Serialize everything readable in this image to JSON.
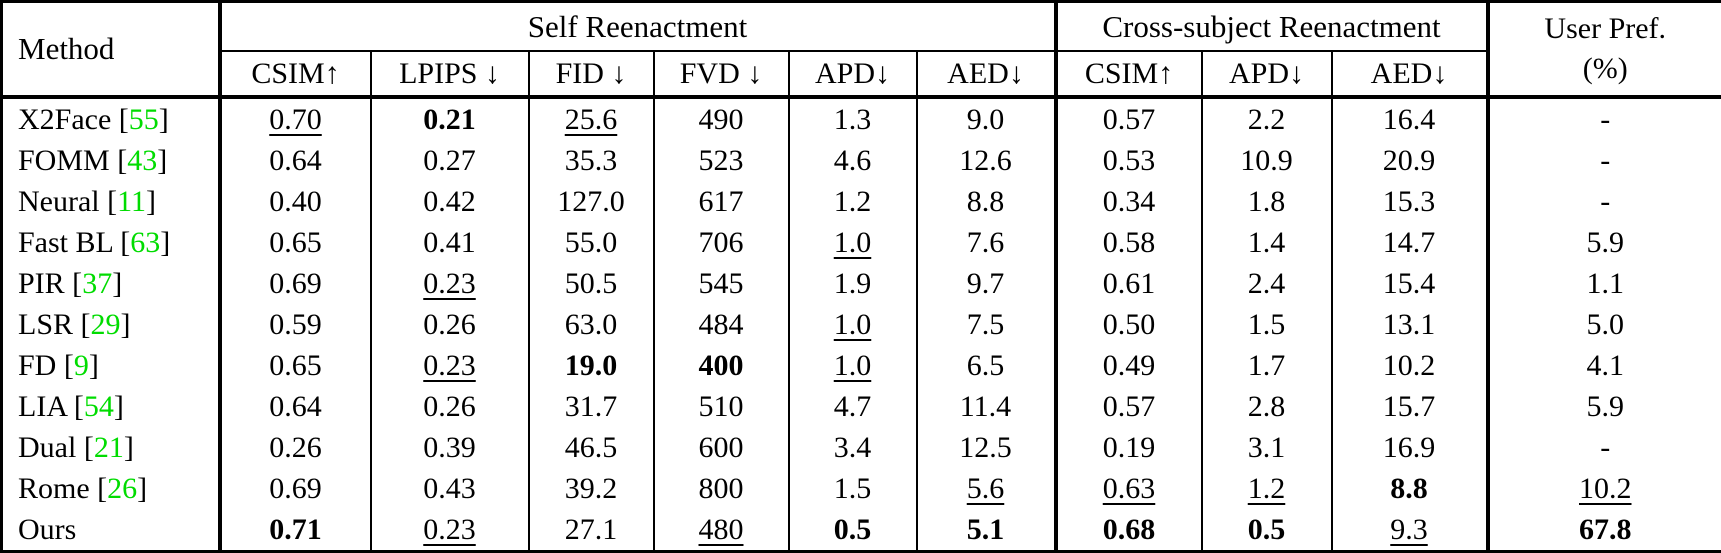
{
  "colors": {
    "citation": "#00dc00"
  },
  "table": {
    "header": {
      "method": "Method",
      "group_self": "Self Reenactment",
      "group_cross": "Cross-subject Reenactment",
      "user_pref_line1": "User Pref.",
      "user_pref_line2": "(%)",
      "sub_self": [
        "CSIM↑",
        "LPIPS ↓",
        "FID ↓",
        "FVD ↓",
        "APD↓",
        "AED↓"
      ],
      "sub_cross": [
        "CSIM↑",
        "APD↓",
        "AED↓"
      ]
    },
    "rows": [
      {
        "method": "X2Face",
        "cite": "55",
        "cells": [
          {
            "v": "0.70",
            "s": "u"
          },
          {
            "v": "0.21",
            "s": "b"
          },
          {
            "v": "25.6",
            "s": "u"
          },
          {
            "v": "490"
          },
          {
            "v": "1.3"
          },
          {
            "v": "9.0"
          },
          {
            "v": "0.57"
          },
          {
            "v": "2.2"
          },
          {
            "v": "16.4"
          },
          {
            "v": "-"
          }
        ]
      },
      {
        "method": "FOMM",
        "cite": "43",
        "cells": [
          {
            "v": "0.64"
          },
          {
            "v": "0.27"
          },
          {
            "v": "35.3"
          },
          {
            "v": "523"
          },
          {
            "v": "4.6"
          },
          {
            "v": "12.6"
          },
          {
            "v": "0.53"
          },
          {
            "v": "10.9"
          },
          {
            "v": "20.9"
          },
          {
            "v": "-"
          }
        ]
      },
      {
        "method": "Neural",
        "cite": "11",
        "cells": [
          {
            "v": "0.40"
          },
          {
            "v": "0.42"
          },
          {
            "v": "127.0"
          },
          {
            "v": "617"
          },
          {
            "v": "1.2"
          },
          {
            "v": "8.8"
          },
          {
            "v": "0.34"
          },
          {
            "v": "1.8"
          },
          {
            "v": "15.3"
          },
          {
            "v": "-"
          }
        ]
      },
      {
        "method": "Fast BL",
        "cite": "63",
        "cells": [
          {
            "v": "0.65"
          },
          {
            "v": "0.41"
          },
          {
            "v": "55.0"
          },
          {
            "v": "706"
          },
          {
            "v": "1.0",
            "s": "u"
          },
          {
            "v": "7.6"
          },
          {
            "v": "0.58"
          },
          {
            "v": "1.4"
          },
          {
            "v": "14.7"
          },
          {
            "v": "5.9"
          }
        ]
      },
      {
        "method": "PIR",
        "cite": "37",
        "cells": [
          {
            "v": "0.69"
          },
          {
            "v": "0.23",
            "s": "u"
          },
          {
            "v": "50.5"
          },
          {
            "v": "545"
          },
          {
            "v": "1.9"
          },
          {
            "v": "9.7"
          },
          {
            "v": "0.61"
          },
          {
            "v": "2.4"
          },
          {
            "v": "15.4"
          },
          {
            "v": "1.1"
          }
        ]
      },
      {
        "method": "LSR",
        "cite": "29",
        "cells": [
          {
            "v": "0.59"
          },
          {
            "v": "0.26"
          },
          {
            "v": "63.0"
          },
          {
            "v": "484"
          },
          {
            "v": "1.0",
            "s": "u"
          },
          {
            "v": "7.5"
          },
          {
            "v": "0.50"
          },
          {
            "v": "1.5"
          },
          {
            "v": "13.1"
          },
          {
            "v": "5.0"
          }
        ]
      },
      {
        "method": "FD",
        "cite": "9",
        "cells": [
          {
            "v": "0.65"
          },
          {
            "v": "0.23",
            "s": "u"
          },
          {
            "v": "19.0",
            "s": "b"
          },
          {
            "v": "400",
            "s": "b"
          },
          {
            "v": "1.0",
            "s": "u"
          },
          {
            "v": "6.5"
          },
          {
            "v": "0.49"
          },
          {
            "v": "1.7"
          },
          {
            "v": "10.2"
          },
          {
            "v": "4.1"
          }
        ]
      },
      {
        "method": "LIA",
        "cite": "54",
        "cells": [
          {
            "v": "0.64"
          },
          {
            "v": "0.26"
          },
          {
            "v": "31.7"
          },
          {
            "v": "510"
          },
          {
            "v": "4.7"
          },
          {
            "v": "11.4"
          },
          {
            "v": "0.57"
          },
          {
            "v": "2.8"
          },
          {
            "v": "15.7"
          },
          {
            "v": "5.9"
          }
        ]
      },
      {
        "method": "Dual",
        "cite": "21",
        "cells": [
          {
            "v": "0.26"
          },
          {
            "v": "0.39"
          },
          {
            "v": "46.5"
          },
          {
            "v": "600"
          },
          {
            "v": "3.4"
          },
          {
            "v": "12.5"
          },
          {
            "v": "0.19"
          },
          {
            "v": "3.1"
          },
          {
            "v": "16.9"
          },
          {
            "v": "-"
          }
        ]
      },
      {
        "method": "Rome",
        "cite": "26",
        "cells": [
          {
            "v": "0.69"
          },
          {
            "v": "0.43"
          },
          {
            "v": "39.2"
          },
          {
            "v": "800"
          },
          {
            "v": "1.5"
          },
          {
            "v": "5.6",
            "s": "u"
          },
          {
            "v": "0.63",
            "s": "u"
          },
          {
            "v": "1.2",
            "s": "u"
          },
          {
            "v": "8.8",
            "s": "b"
          },
          {
            "v": "10.2",
            "s": "u"
          }
        ]
      },
      {
        "method": "Ours",
        "cite": null,
        "cells": [
          {
            "v": "0.71",
            "s": "b"
          },
          {
            "v": "0.23",
            "s": "u"
          },
          {
            "v": "27.1"
          },
          {
            "v": "480",
            "s": "u"
          },
          {
            "v": "0.5",
            "s": "b"
          },
          {
            "v": "5.1",
            "s": "b"
          },
          {
            "v": "0.68",
            "s": "b"
          },
          {
            "v": "0.5",
            "s": "b"
          },
          {
            "v": "9.3",
            "s": "u"
          },
          {
            "v": "67.8",
            "s": "b"
          }
        ]
      }
    ]
  }
}
